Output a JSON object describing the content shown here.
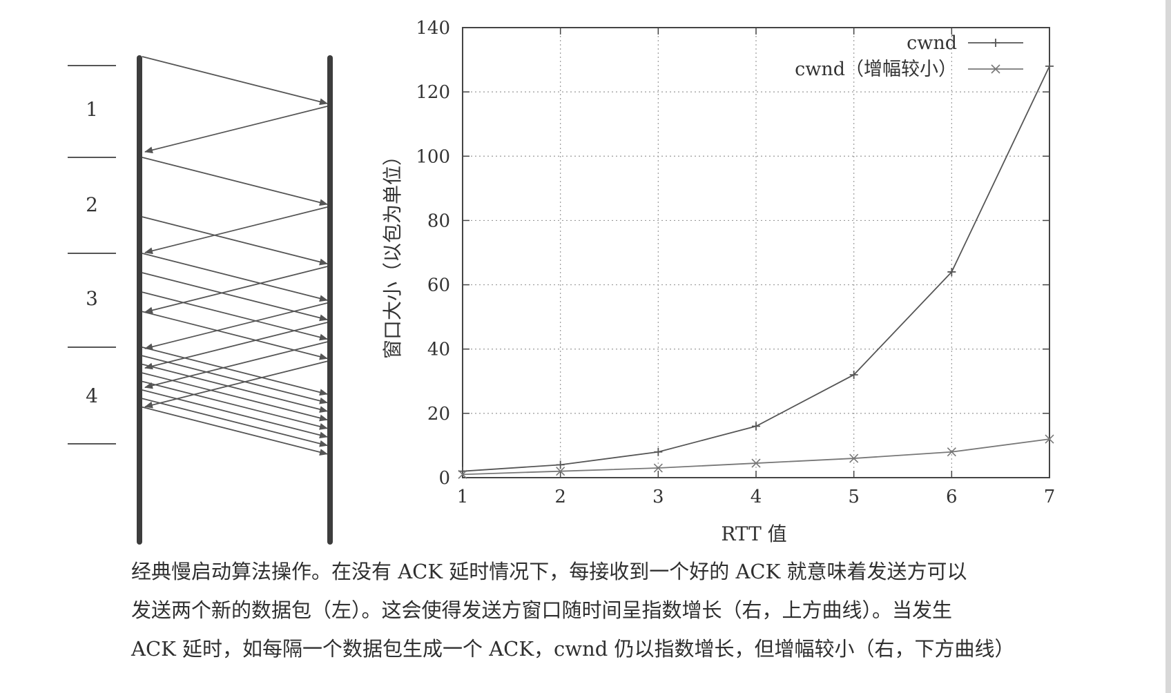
{
  "diagram": {
    "rounds": [
      {
        "label": "1",
        "data": 1
      },
      {
        "label": "2",
        "data": 2
      },
      {
        "label": "3",
        "data": 4
      },
      {
        "label": "4",
        "data": 8
      }
    ]
  },
  "chart_data": {
    "type": "line",
    "xlabel": "RTT 值",
    "ylabel": "窗口大小（以包为单位）",
    "xlim": [
      1,
      7
    ],
    "ylim": [
      0,
      140
    ],
    "x_ticks": [
      "1",
      "2",
      "3",
      "4",
      "5",
      "6",
      "7"
    ],
    "y_ticks": [
      "0",
      "20",
      "40",
      "60",
      "80",
      "100",
      "120",
      "140"
    ],
    "x": [
      1,
      2,
      3,
      4,
      5,
      6,
      7
    ],
    "grid": true,
    "legend_position": "top-right",
    "series": [
      {
        "name": "cwnd",
        "values": [
          2,
          4,
          8,
          16,
          32,
          64,
          128
        ],
        "marker": "+",
        "color": "#555555"
      },
      {
        "name": "cwnd（增幅较小）",
        "values": [
          1,
          2,
          3,
          4.5,
          6,
          8,
          12
        ],
        "marker": "x",
        "color": "#777777"
      }
    ]
  },
  "caption": {
    "line1": "经典慢启动算法操作。在没有 ACK 延时情况下，每接收到一个好的 ACK 就意味着发送方可以",
    "line2": "发送两个新的数据包（左）。这会使得发送方窗口随时间呈指数增长（右，上方曲线）。当发生",
    "line3": "ACK 延时，如每隔一个数据包生成一个 ACK，cwnd 仍以指数增长，但增幅较小（右，下方曲线）"
  }
}
